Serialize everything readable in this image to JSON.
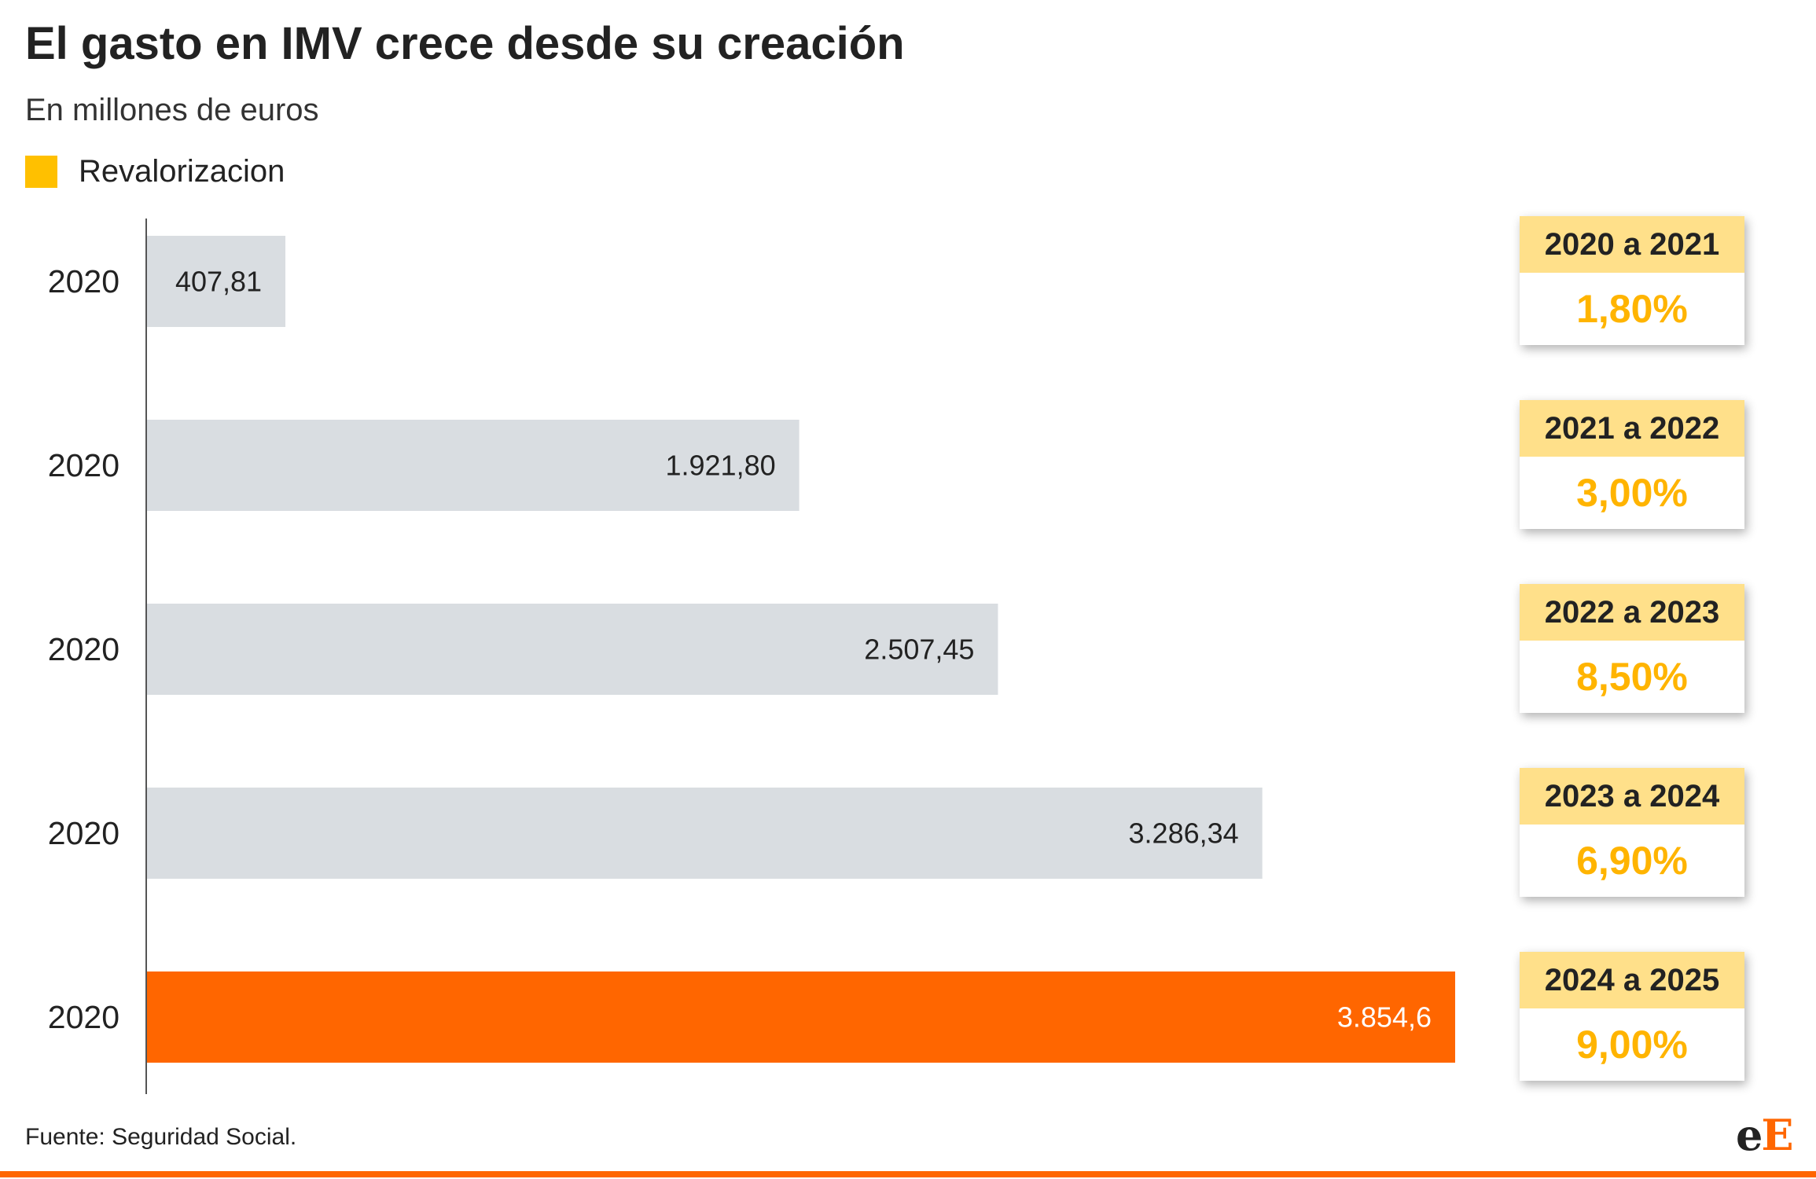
{
  "title": "El gasto en IMV crece desde su creación",
  "subtitle": "En millones de euros",
  "legend": {
    "label": "Revalorizacion",
    "color": "#FFC000"
  },
  "colors": {
    "bar_default": "#D9DDE1",
    "bar_highlight": "#FF6600",
    "label_default": "#222222",
    "label_highlight": "#FFFFFF",
    "rate_header_bg": "#FFE08A",
    "rate_value": "#FFB400",
    "axis_line": "#555555",
    "bottom_rule": "#FF6600",
    "logo_e_lower": "#222222",
    "logo_e_upper": "#FF6600"
  },
  "chart_data": {
    "type": "bar",
    "orientation": "horizontal",
    "categories": [
      "2020",
      "2020",
      "2020",
      "2020",
      "2020"
    ],
    "values": [
      407.81,
      1921.8,
      2507.45,
      3286.34,
      3854.6
    ],
    "value_labels": [
      "407,81",
      "1.921,80",
      "2.507,45",
      "3.286,34",
      "3.854,6"
    ],
    "highlight_index": 4,
    "xlim": [
      0,
      3854.6
    ],
    "grid": false,
    "legend_position": "top-left"
  },
  "rates": [
    {
      "period": "2020 a 2021",
      "value": "1,80%"
    },
    {
      "period": "2021 a 2022",
      "value": "3,00%"
    },
    {
      "period": "2022 a 2023",
      "value": "8,50%"
    },
    {
      "period": "2023 a 2024",
      "value": "6,90%"
    },
    {
      "period": "2024 a 2025",
      "value": "9,00%"
    }
  ],
  "source": "Fuente: Seguridad Social.",
  "logo": {
    "lower": "e",
    "upper": "E"
  }
}
